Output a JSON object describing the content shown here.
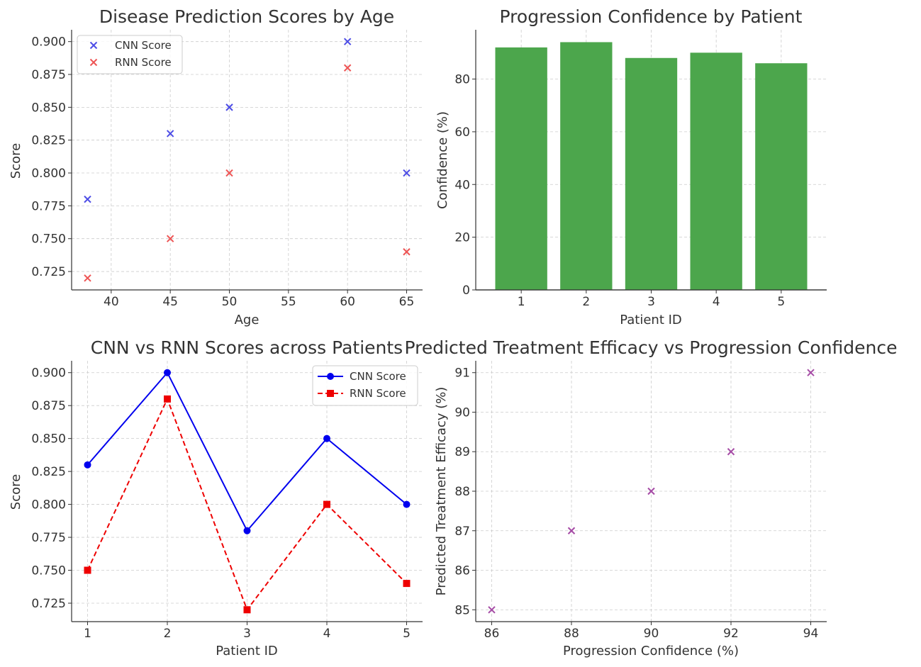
{
  "chart_data": [
    {
      "type": "scatter",
      "title": "Disease Prediction Scores by Age",
      "xlabel": "Age",
      "ylabel": "Score",
      "xlim": [
        36.65,
        66.35
      ],
      "ylim": [
        0.711,
        0.909
      ],
      "xticks": [
        40,
        45,
        50,
        55,
        60,
        65
      ],
      "yticks": [
        0.725,
        0.75,
        0.775,
        0.8,
        0.825,
        0.85,
        0.875,
        0.9
      ],
      "ytick_labels": [
        "0.725",
        "0.750",
        "0.775",
        "0.800",
        "0.825",
        "0.850",
        "0.875",
        "0.900"
      ],
      "xtick_labels": [
        "40",
        "45",
        "50",
        "55",
        "60",
        "65"
      ],
      "grid": true,
      "legend": "top-left",
      "series": [
        {
          "name": "CNN Score",
          "marker": "x",
          "color": "#4d4de6",
          "x": [
            38,
            45,
            50,
            60,
            65
          ],
          "y": [
            0.78,
            0.83,
            0.85,
            0.9,
            0.8
          ]
        },
        {
          "name": "RNN Score",
          "marker": "x",
          "color": "#ee5555",
          "x": [
            38,
            45,
            50,
            60,
            65
          ],
          "y": [
            0.72,
            0.75,
            0.8,
            0.88,
            0.74
          ]
        }
      ]
    },
    {
      "type": "bar",
      "title": "Progression Confidence by Patient",
      "xlabel": "Patient ID",
      "ylabel": "Confidence (%)",
      "categories": [
        "1",
        "2",
        "3",
        "4",
        "5"
      ],
      "values": [
        92,
        94,
        88,
        90,
        86
      ],
      "color": "#4ca64c",
      "ylim": [
        0,
        98.7
      ],
      "yticks": [
        0,
        20,
        40,
        60,
        80
      ],
      "ytick_labels": [
        "0",
        "20",
        "40",
        "60",
        "80"
      ],
      "grid": true
    },
    {
      "type": "line",
      "title": "CNN vs RNN Scores across Patients",
      "xlabel": "Patient ID",
      "ylabel": "Score",
      "xlim": [
        0.8,
        5.2
      ],
      "ylim": [
        0.711,
        0.909
      ],
      "xticks": [
        1,
        2,
        3,
        4,
        5
      ],
      "xtick_labels": [
        "1",
        "2",
        "3",
        "4",
        "5"
      ],
      "yticks": [
        0.725,
        0.75,
        0.775,
        0.8,
        0.825,
        0.85,
        0.875,
        0.9
      ],
      "ytick_labels": [
        "0.725",
        "0.750",
        "0.775",
        "0.800",
        "0.825",
        "0.850",
        "0.875",
        "0.900"
      ],
      "grid": true,
      "legend": "top-right",
      "series": [
        {
          "name": "CNN Score",
          "color": "#0000ee",
          "marker": "circle",
          "dash": "solid",
          "x": [
            1,
            2,
            3,
            4,
            5
          ],
          "y": [
            0.83,
            0.9,
            0.78,
            0.85,
            0.8
          ]
        },
        {
          "name": "RNN Score",
          "color": "#ee0000",
          "marker": "square",
          "dash": "dashed",
          "x": [
            1,
            2,
            3,
            4,
            5
          ],
          "y": [
            0.75,
            0.88,
            0.72,
            0.8,
            0.74
          ]
        }
      ]
    },
    {
      "type": "scatter",
      "title": "Predicted Treatment Efficacy vs Progression Confidence",
      "xlabel": "Progression Confidence (%)",
      "ylabel": "Predicted Treatment Efficacy (%)",
      "xlim": [
        85.6,
        94.4
      ],
      "ylim": [
        84.7,
        91.3
      ],
      "xticks": [
        86,
        88,
        90,
        92,
        94
      ],
      "xtick_labels": [
        "86",
        "88",
        "90",
        "92",
        "94"
      ],
      "yticks": [
        85,
        86,
        87,
        88,
        89,
        90,
        91
      ],
      "ytick_labels": [
        "85",
        "86",
        "87",
        "88",
        "89",
        "90",
        "91"
      ],
      "grid": true,
      "series": [
        {
          "marker": "x",
          "color": "#a64ca6",
          "x": [
            86,
            88,
            90,
            92,
            94
          ],
          "y": [
            85,
            87,
            88,
            89,
            91
          ]
        }
      ]
    }
  ]
}
